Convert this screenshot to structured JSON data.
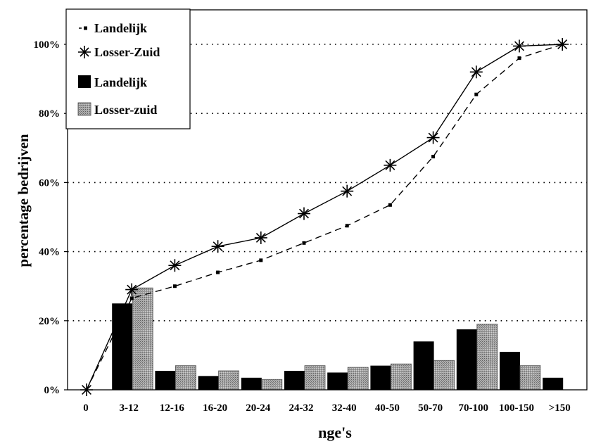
{
  "chart_data": {
    "type": "bar",
    "categories": [
      "0",
      "3-12",
      "12-16",
      "16-20",
      "20-24",
      "24-32",
      "32-40",
      "40-50",
      "50-70",
      "70-100",
      "100-150",
      ">150"
    ],
    "ylim": [
      0,
      100
    ],
    "yticks": [
      0,
      20,
      40,
      60,
      80,
      100
    ],
    "ytick_suffix": "%",
    "xlabel": "nge's",
    "ylabel": "percentage bedrijven",
    "grid": "horizontal-dotted",
    "legend_position": "top-left",
    "series": [
      {
        "name": "Landelijk",
        "kind": "line",
        "style": "dashed",
        "marker": "square",
        "values": [
          0,
          26.5,
          30,
          34,
          37.5,
          42.5,
          47.5,
          53.5,
          67.5,
          85.5,
          96,
          100
        ],
        "color": "#000000"
      },
      {
        "name": "Losser-Zuid",
        "kind": "line",
        "style": "solid",
        "marker": "asterisk",
        "values": [
          0,
          29,
          36,
          41.5,
          44,
          51,
          57.5,
          65,
          73,
          92,
          99.5,
          100
        ],
        "color": "#000000"
      },
      {
        "name": "Landelijk",
        "kind": "bar",
        "values": [
          null,
          25,
          5.5,
          4,
          3.5,
          5.5,
          5,
          7,
          14,
          17.5,
          11,
          3.5
        ],
        "color": "#000000"
      },
      {
        "name": "Losser-zuid",
        "kind": "bar",
        "values": [
          null,
          29.5,
          7,
          5.5,
          3,
          7,
          6.5,
          7.5,
          8.5,
          19,
          7,
          null
        ],
        "color": "#8a8a8a"
      }
    ]
  }
}
